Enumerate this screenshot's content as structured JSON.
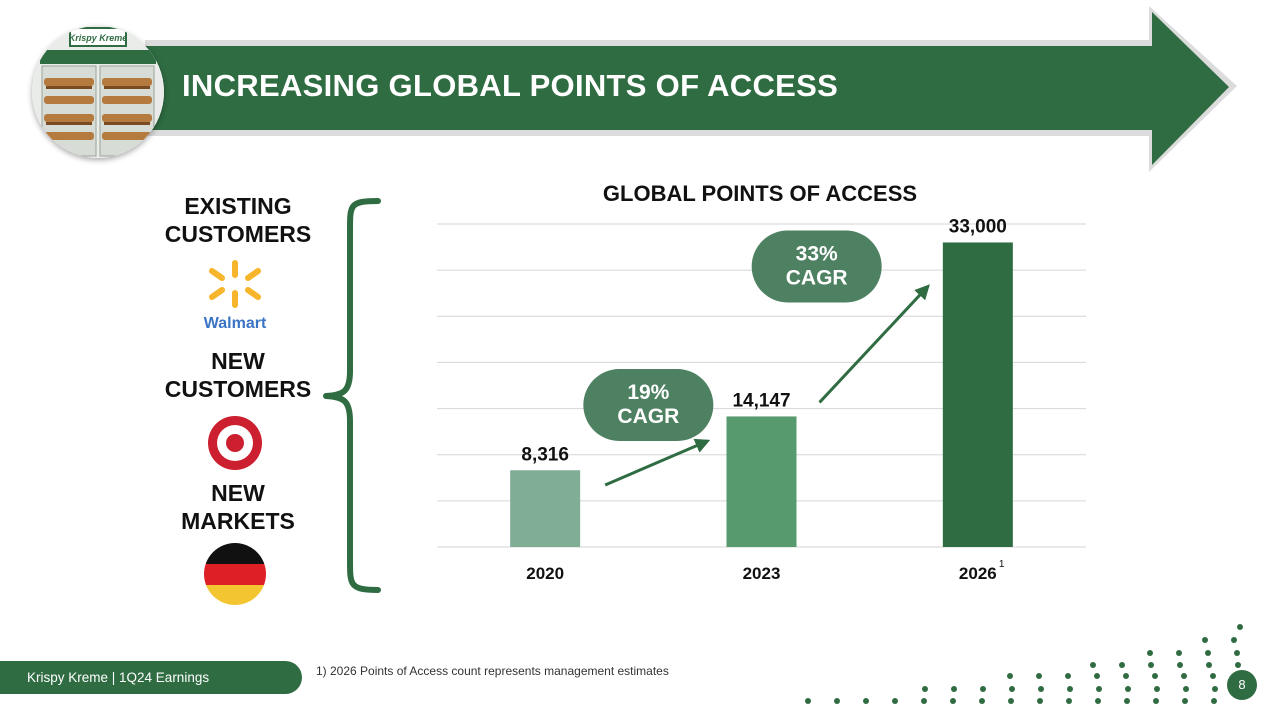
{
  "header": {
    "title": "INCREASING GLOBAL POINTS OF ACCESS",
    "photo": "krispy-kreme-doughnut-display-case"
  },
  "sidebar": {
    "groups": [
      {
        "label_lines": [
          "EXISTING",
          "CUSTOMERS"
        ],
        "logo": "walmart-spark-logo",
        "logo_text": "Walmart"
      },
      {
        "label_lines": [
          "NEW",
          "CUSTOMERS"
        ],
        "logo": "target-bullseye-logo"
      },
      {
        "label_lines": [
          "NEW",
          "MARKETS"
        ],
        "logo": "germany-flag"
      }
    ]
  },
  "chart_data": {
    "type": "bar",
    "title": "GLOBAL POINTS OF ACCESS",
    "categories": [
      "2020",
      "2023",
      "2026"
    ],
    "category_footnotes": [
      "",
      "",
      "1"
    ],
    "values": [
      8316,
      14147,
      33000
    ],
    "value_labels": [
      "8,316",
      "14,147",
      "33,000"
    ],
    "ylim": [
      0,
      35000
    ],
    "grid": true,
    "annotations": [
      {
        "from": "2020",
        "to": "2023",
        "lines": [
          "19%",
          "CAGR"
        ]
      },
      {
        "from": "2023",
        "to": "2026",
        "lines": [
          "33%",
          "CAGR"
        ]
      }
    ],
    "colors": [
      "#80ae95",
      "#579a6e",
      "#2f6c42"
    ]
  },
  "footer": {
    "label": "Krispy Kreme  |  1Q24 Earnings",
    "footnote": "1)    2026 Points of Access count represents management estimates",
    "page_number": "8"
  },
  "colors": {
    "brand_green": "#2f6c42",
    "cagr_bubble": "#4e8162",
    "walmart_blue": "#3b74c4",
    "walmart_yellow": "#f7b52b",
    "target_red": "#cc1f2f"
  }
}
